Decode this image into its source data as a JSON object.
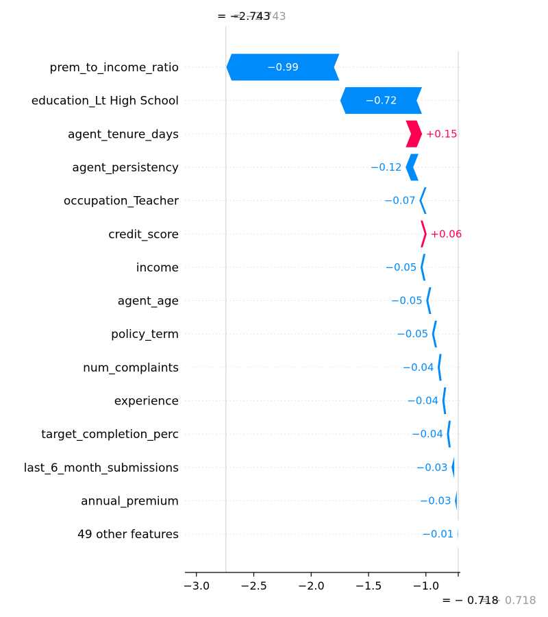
{
  "chart_data": {
    "type": "bar",
    "variant": "waterfall",
    "title": "",
    "xlabel": "",
    "ylabel": "",
    "xlim": [
      -3.1,
      -0.7
    ],
    "x_ticks": [
      -3.0,
      -2.5,
      -2.0,
      -1.5,
      -1.0
    ],
    "x_tick_labels": [
      "−3.0",
      "−2.5",
      "−2.0",
      "−1.5",
      "−1.0"
    ],
    "grid": false,
    "base_value": -0.718,
    "base_label": "= − 0.718",
    "base_label_overlap": "= − 0.718",
    "final_value": -2.743,
    "final_label": "= −2.743",
    "final_label_overlap": "= −2.743",
    "colors": {
      "positive": "#ff0051",
      "negative": "#008bfb",
      "gray_text": "#999999",
      "rule": "#cccccc"
    },
    "features": [
      {
        "name": "prem_to_income_ratio",
        "value": -0.99,
        "label": "−0.99",
        "start": -1.75,
        "end": -2.743
      },
      {
        "name": "education_Lt High School",
        "value": -0.72,
        "label": "−0.72",
        "start": -1.03,
        "end": -1.75
      },
      {
        "name": "agent_tenure_days",
        "value": 0.15,
        "label": "+0.15",
        "start": -1.18,
        "end": -1.03
      },
      {
        "name": "agent_persistency",
        "value": -0.12,
        "label": "−0.12",
        "start": -1.06,
        "end": -1.18
      },
      {
        "name": "occupation_Teacher",
        "value": -0.07,
        "label": "−0.07",
        "start": -0.99,
        "end": -1.06
      },
      {
        "name": "credit_score",
        "value": 0.06,
        "label": "+0.06",
        "start": -1.05,
        "end": -0.99
      },
      {
        "name": "income",
        "value": -0.05,
        "label": "−0.05",
        "start": -1.0,
        "end": -1.05
      },
      {
        "name": "agent_age",
        "value": -0.05,
        "label": "−0.05",
        "start": -0.95,
        "end": -1.0
      },
      {
        "name": "policy_term",
        "value": -0.05,
        "label": "−0.05",
        "start": -0.9,
        "end": -0.95
      },
      {
        "name": "num_complaints",
        "value": -0.04,
        "label": "−0.04",
        "start": -0.86,
        "end": -0.9
      },
      {
        "name": "experience",
        "value": -0.04,
        "label": "−0.04",
        "start": -0.82,
        "end": -0.86
      },
      {
        "name": "target_completion_perc",
        "value": -0.04,
        "label": "−0.04",
        "start": -0.78,
        "end": -0.82
      },
      {
        "name": "last_6_month_submissions",
        "value": -0.03,
        "label": "−0.03",
        "start": -0.75,
        "end": -0.78
      },
      {
        "name": "annual_premium",
        "value": -0.03,
        "label": "−0.03",
        "start": -0.728,
        "end": -0.75
      },
      {
        "name": "49 other features",
        "value": -0.01,
        "label": "−0.01",
        "start": -0.718,
        "end": -0.728
      }
    ]
  }
}
